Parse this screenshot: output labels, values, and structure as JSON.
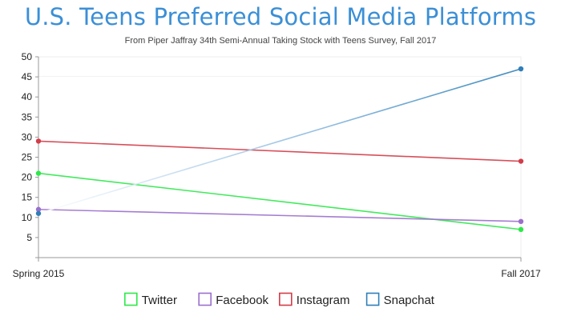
{
  "chart_data": {
    "type": "line",
    "title": "U.S. Teens Preferred Social Media Platforms",
    "subtitle": "From Piper Jaffray 34th Semi-Annual Taking Stock with Teens Survey, Fall 2017",
    "xlabel": "",
    "ylabel": "",
    "categories": [
      "Spring 2015",
      "Fall 2017"
    ],
    "ylim": [
      0,
      50
    ],
    "yticks": [
      5,
      10,
      15,
      20,
      25,
      30,
      35,
      40,
      45,
      50
    ],
    "grid": false,
    "legend_position": "bottom",
    "series": [
      {
        "name": "Twitter",
        "values": [
          21,
          7
        ],
        "color": "#2ee84a"
      },
      {
        "name": "Facebook",
        "values": [
          12,
          9
        ],
        "color": "#9b6fcc"
      },
      {
        "name": "Instagram",
        "values": [
          29,
          24
        ],
        "color": "#d33c48"
      },
      {
        "name": "Snapchat",
        "values": [
          11,
          47
        ],
        "color": "#2f7fb8"
      }
    ]
  }
}
